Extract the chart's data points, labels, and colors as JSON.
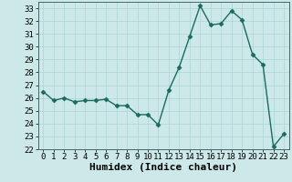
{
  "x": [
    0,
    1,
    2,
    3,
    4,
    5,
    6,
    7,
    8,
    9,
    10,
    11,
    12,
    13,
    14,
    15,
    16,
    17,
    18,
    19,
    20,
    21,
    22,
    23
  ],
  "y": [
    26.5,
    25.8,
    26.0,
    25.7,
    25.8,
    25.8,
    25.9,
    25.4,
    25.4,
    24.7,
    24.7,
    23.9,
    26.6,
    28.4,
    30.8,
    33.2,
    31.7,
    31.8,
    32.8,
    32.1,
    29.4,
    28.6,
    22.2,
    23.2
  ],
  "line_color": "#1a6b5e",
  "marker": "D",
  "marker_size": 2.5,
  "bg_color": "#cce8e8",
  "grid_color": "#aad4d4",
  "xlabel": "Humidex (Indice chaleur)",
  "ylim": [
    22,
    33.5
  ],
  "xlim": [
    -0.5,
    23.5
  ],
  "yticks": [
    22,
    23,
    24,
    25,
    26,
    27,
    28,
    29,
    30,
    31,
    32,
    33
  ],
  "xticks": [
    0,
    1,
    2,
    3,
    4,
    5,
    6,
    7,
    8,
    9,
    10,
    11,
    12,
    13,
    14,
    15,
    16,
    17,
    18,
    19,
    20,
    21,
    22,
    23
  ],
  "xlabel_fontsize": 8,
  "tick_fontsize": 6.5,
  "linewidth": 1.0
}
